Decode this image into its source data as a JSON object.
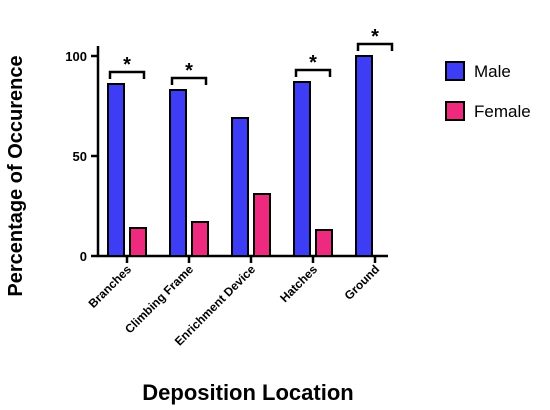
{
  "chart_data": {
    "type": "bar",
    "title": "",
    "xlabel": "Deposition Location",
    "ylabel": "Percentage of Occurence",
    "ylim": [
      0,
      100
    ],
    "yticks": [
      0,
      50,
      100
    ],
    "categories": [
      "Branches",
      "Climbing Frame",
      "Enrichment Device",
      "Hatches",
      "Ground"
    ],
    "series": [
      {
        "name": "Male",
        "color": "#3d3df5",
        "values": [
          86,
          83,
          69,
          87,
          100
        ]
      },
      {
        "name": "Female",
        "color": "#ee2a7f",
        "values": [
          14,
          17,
          31,
          13,
          0
        ]
      }
    ],
    "significance": [
      "*",
      "*",
      "",
      "*",
      "*"
    ],
    "legend_position": "right",
    "grid": false
  }
}
